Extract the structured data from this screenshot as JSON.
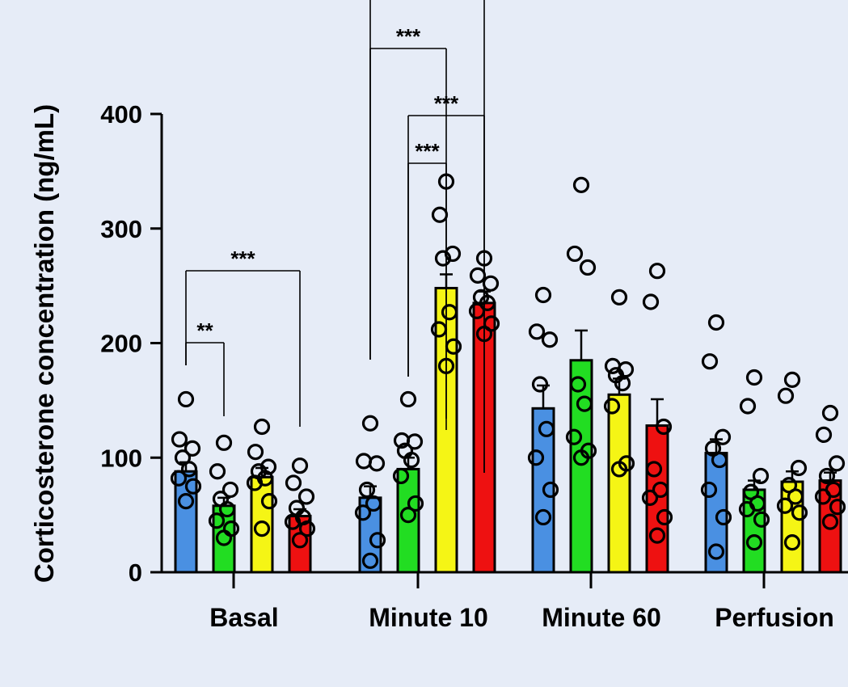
{
  "chart_data": {
    "type": "bar",
    "title": "",
    "xlabel": "",
    "ylabel": "Corticosterone concentration (ng/mL)",
    "ylim": [
      0,
      400
    ],
    "yticks": [
      "0",
      "100",
      "200",
      "300",
      "400"
    ],
    "categories": [
      "Basal",
      "Minute 10",
      "Minute 60",
      "Perfusion"
    ],
    "grid": false,
    "legend": "none",
    "bar_colors": [
      "#4a90e2",
      "#22dd22",
      "#f5f515",
      "#ee1111"
    ],
    "series": [
      {
        "color": "#4a90e2",
        "values": [
          88,
          65,
          143,
          104
        ],
        "errors": [
          8,
          10,
          20,
          12
        ],
        "points": [
          [
            151,
            116,
            108,
            100,
            90,
            82,
            75,
            62
          ],
          [
            130,
            97,
            95,
            72,
            60,
            52,
            28,
            10
          ],
          [
            242,
            210,
            203,
            164,
            125,
            100,
            72,
            48
          ],
          [
            218,
            184,
            118,
            108,
            98,
            72,
            48,
            18
          ]
        ]
      },
      {
        "color": "#22dd22",
        "values": [
          58,
          90,
          185,
          72
        ],
        "errors": [
          7,
          10,
          26,
          8
        ],
        "points": [
          [
            113,
            88,
            72,
            64,
            55,
            45,
            38,
            30
          ],
          [
            151,
            115,
            114,
            106,
            98,
            84,
            60,
            50
          ],
          [
            338,
            278,
            266,
            164,
            147,
            118,
            106,
            100
          ],
          [
            170,
            145,
            84,
            70,
            60,
            55,
            46,
            26
          ]
        ]
      },
      {
        "color": "#f5f515",
        "values": [
          83,
          248,
          155,
          79
        ],
        "errors": [
          8,
          12,
          14,
          9
        ],
        "points": [
          [
            127,
            105,
            92,
            88,
            82,
            78,
            62,
            38
          ],
          [
            341,
            312,
            278,
            274,
            227,
            212,
            197,
            180
          ],
          [
            240,
            180,
            177,
            172,
            165,
            145,
            95,
            90
          ],
          [
            168,
            154,
            91,
            76,
            66,
            58,
            52,
            26
          ]
        ]
      },
      {
        "color": "#ee1111",
        "values": [
          49,
          235,
          128,
          80
        ],
        "errors": [
          6,
          10,
          23,
          7
        ],
        "points": [
          [
            93,
            78,
            66,
            56,
            48,
            44,
            38,
            28
          ],
          [
            274,
            259,
            252,
            240,
            235,
            228,
            217,
            208
          ],
          [
            263,
            236,
            127,
            90,
            72,
            65,
            48,
            32
          ],
          [
            139,
            120,
            95,
            84,
            72,
            66,
            57,
            44
          ]
        ]
      }
    ],
    "annotations": [
      {
        "text": "**",
        "group": "Basal",
        "from_series": 0,
        "to_series": 1
      },
      {
        "text": "***",
        "group": "Basal",
        "from_series": 0,
        "to_series": 3
      },
      {
        "text": "***",
        "group": "Minute 10",
        "from_series": 1,
        "to_series": 2
      },
      {
        "text": "***",
        "group": "Minute 10",
        "from_series": 1,
        "to_series": 3
      },
      {
        "text": "***",
        "group": "Minute 10",
        "from_series": 0,
        "to_series": 2
      },
      {
        "text": "",
        "group": "Minute 10",
        "from_series": 0,
        "to_series": 3
      }
    ]
  }
}
